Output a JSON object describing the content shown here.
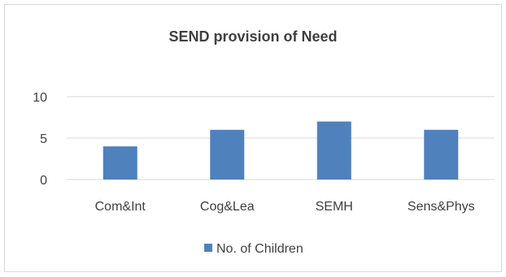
{
  "chart_data": {
    "type": "bar",
    "title": "SEND provision of Need",
    "categories": [
      "Com&Int",
      "Cog&Lea",
      "SEMH",
      "Sens&Phys"
    ],
    "series": [
      {
        "name": "No. of Children",
        "values": [
          4,
          6,
          7,
          6
        ],
        "color": "#4f81bd"
      }
    ],
    "ylim": [
      0,
      10
    ],
    "yticks": [
      0,
      5,
      10
    ],
    "grid": true,
    "legend": "bottom",
    "colors": {
      "gridline": "#d9d9d9",
      "text": "#404040",
      "frame": "#d9d9d9"
    }
  }
}
